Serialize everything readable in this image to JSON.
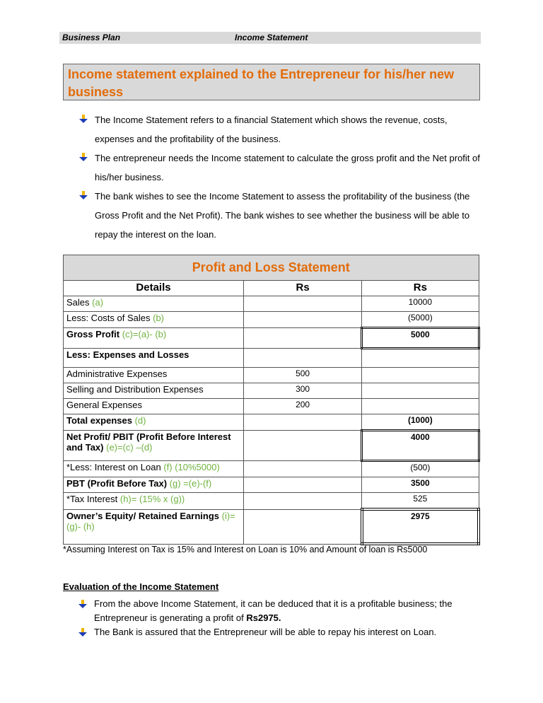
{
  "header": {
    "left": "Business Plan",
    "right": "Income Statement"
  },
  "title": "Income statement explained to the Entrepreneur for his/her new business",
  "bullets": [
    "The Income Statement refers to a financial Statement which shows the revenue, costs, expenses and the profitability of the business.",
    "The entrepreneur needs the Income statement to calculate the gross profit and the Net profit of his/her business.",
    "The bank wishes to see the Income Statement to assess the profitability of the business (the Gross Profit and the Net Profit). The bank wishes to see whether the business will be able to repay the interest on the loan."
  ],
  "table": {
    "title": "Profit and Loss Statement",
    "headers": [
      "Details",
      "Rs",
      "Rs"
    ],
    "rows": [
      {
        "label": "Sales ",
        "tag": "(a)",
        "c1": "",
        "c2": "10000"
      },
      {
        "label": "Less: Costs of Sales ",
        "tag": "(b)",
        "c1": "",
        "c2": "(5000)"
      },
      {
        "label": "Gross Profit ",
        "tag": "(c)=(a)- (b)",
        "c1": "",
        "c2": "5000"
      },
      {
        "label": "Less: Expenses and Losses",
        "tag": "",
        "c1": "",
        "c2": ""
      },
      {
        "label": "Administrative Expenses",
        "tag": "",
        "c1": "500",
        "c2": ""
      },
      {
        "label": "Selling and Distribution Expenses",
        "tag": "",
        "c1": "300",
        "c2": ""
      },
      {
        "label": "General Expenses",
        "tag": "",
        "c1": "200",
        "c2": ""
      },
      {
        "label": "Total expenses ",
        "tag": "(d)",
        "c1": "",
        "c2": "(1000)"
      },
      {
        "label": "Net Profit/ PBIT (Profit Before Interest and Tax) ",
        "tag": "(e)=(c) –(d)",
        "c1": "",
        "c2": "4000"
      },
      {
        "label": "*Less: Interest on Loan ",
        "tag": "(f)  (10%5000)",
        "c1": "",
        "c2": "(500)"
      },
      {
        "label": "PBT (Profit Before Tax) ",
        "tag": "(g) =(e)-(f)",
        "c1": "",
        "c2": "3500"
      },
      {
        "label": "*Tax Interest ",
        "tag": "(h)= (15% x (g))",
        "c1": "",
        "c2": "525"
      },
      {
        "label": "Owner’s Equity/ Retained Earnings ",
        "tag": "(i)=(g)- (h)",
        "c1": "",
        "c2": "2975"
      }
    ]
  },
  "note": "*Assuming Interest on Tax is 15% and Interest on Loan is 10% and Amount of loan is Rs5000",
  "evaluation": {
    "heading": "Evaluation of the Income Statement",
    "b1_text": "From the above Income Statement, it can be deduced that it is a profitable business; the Entrepreneur is generating a profit of ",
    "b1_bold": "Rs2975.",
    "b2": "The Bank is assured that the Entrepreneur will be able to repay his interest on Loan."
  },
  "colors": {
    "orange": "#e36c0a",
    "green": "#6fb33f",
    "gray": "#d9d9d9"
  }
}
